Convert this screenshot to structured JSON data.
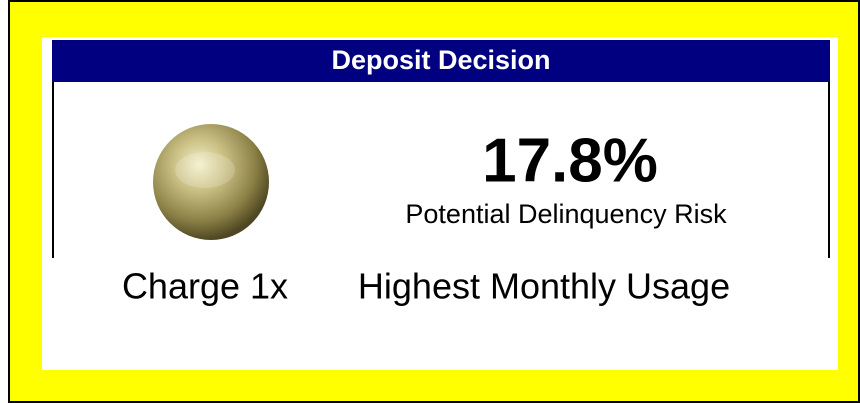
{
  "panel": {
    "title": "Deposit Decision",
    "risk_value": "17.8%",
    "risk_label": "Potential Delinquency Risk",
    "recommendation_prefix": "Charge 1x",
    "recommendation": "Highest Monthly Usage"
  }
}
